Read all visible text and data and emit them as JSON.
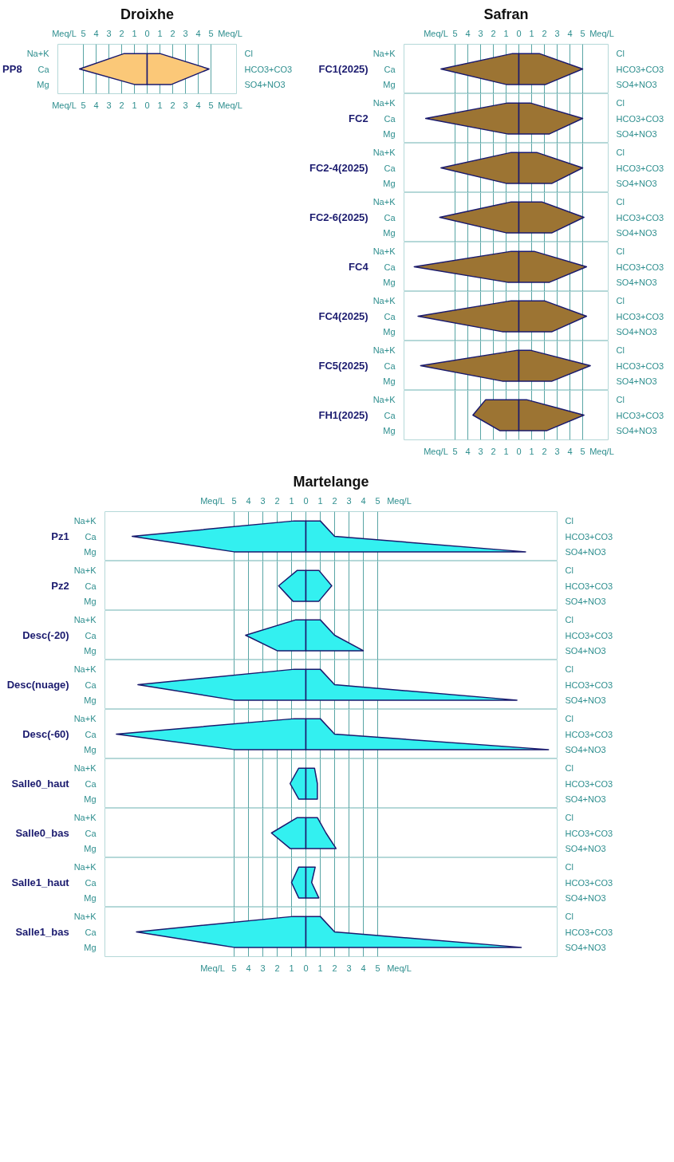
{
  "chart_data": [
    {
      "type": "area",
      "orientation": "horizontal",
      "title": "Droixhe",
      "ylabel": "PP8",
      "categories": [
        "Na+K",
        "Ca",
        "Mg"
      ],
      "annotations": [
        "Cl",
        "HCO3+CO3",
        "SO4+NO3"
      ],
      "series": [
        {
          "color": "#fbc878",
          "values": [
            -1.8,
            -5.3,
            -1.0
          ]
        },
        {
          "color": "#fbc878",
          "values": [
            1.0,
            4.85,
            1.9
          ]
        }
      ],
      "xlim": [
        -7,
        7
      ],
      "xticks": [
        {
          "value": -5,
          "label": "5"
        },
        {
          "value": -4,
          "label": "4"
        },
        {
          "value": -3,
          "label": "3"
        },
        {
          "value": -2,
          "label": "2"
        },
        {
          "value": -1,
          "label": "1"
        },
        0,
        1,
        2,
        3,
        4,
        5
      ],
      "xlabel": "Meq/L",
      "x2lim": [
        -7,
        7
      ],
      "x2ticks": [
        {
          "value": -5,
          "label": "5"
        },
        {
          "value": -4,
          "label": "4"
        },
        {
          "value": -3,
          "label": "3"
        },
        {
          "value": -2,
          "label": "2"
        },
        {
          "value": -1,
          "label": "1"
        },
        0,
        1,
        2,
        3,
        4,
        5
      ],
      "x2label": "Meq/L",
      "grid": "x"
    },
    {
      "type": "area",
      "orientation": "horizontal",
      "title": "Safran",
      "ylabel": "FC1(2025)",
      "categories": [
        "Na+K",
        "Ca",
        "Mg"
      ],
      "annotations": [
        "Cl",
        "HCO3+CO3",
        "SO4+NO3"
      ],
      "series": [
        {
          "color": "#9c7433",
          "values": [
            -0.5,
            -6.1,
            -1.0
          ]
        },
        {
          "color": "#9c7433",
          "values": [
            1.6,
            5.0,
            2.1
          ]
        }
      ],
      "xlim": [
        -9,
        7
      ],
      "xticks": [
        -5,
        -4,
        -3,
        -2,
        -1,
        0,
        1,
        2,
        3,
        4,
        5
      ],
      "x2lim": [
        -9,
        7
      ],
      "x2ticks": [
        {
          "value": -5,
          "label": "5"
        },
        {
          "value": -4,
          "label": "4"
        },
        {
          "value": -3,
          "label": "3"
        },
        {
          "value": -2,
          "label": "2"
        },
        {
          "value": -1,
          "label": "1"
        },
        0,
        1,
        2,
        3,
        4,
        5
      ],
      "x2label": "Meq/L",
      "grid": "x",
      "tick_labels": "y"
    },
    {
      "type": "area",
      "orientation": "horizontal",
      "ylabel": "FC2",
      "categories": [
        "Na+K",
        "Ca",
        "Mg"
      ],
      "annotations": [
        "Cl",
        "HCO3+CO3",
        "SO4+NO3"
      ],
      "series": [
        {
          "color": "#9c7433",
          "values": [
            -0.9,
            -7.3,
            -0.9
          ]
        },
        {
          "color": "#9c7433",
          "values": [
            0.9,
            5.0,
            2.4
          ]
        }
      ],
      "xlim": [
        -9,
        7
      ],
      "xticks": [
        -5,
        -4,
        -3,
        -2,
        -1,
        0,
        1,
        2,
        3,
        4,
        5
      ],
      "grid": "x",
      "tick_labels": "y"
    },
    {
      "type": "area",
      "orientation": "horizontal",
      "ylabel": "FC2-4(2025)",
      "categories": [
        "Na+K",
        "Ca",
        "Mg"
      ],
      "annotations": [
        "Cl",
        "HCO3+CO3",
        "SO4+NO3"
      ],
      "series": [
        {
          "color": "#9c7433",
          "values": [
            -0.6,
            -6.1,
            -1.0
          ]
        },
        {
          "color": "#9c7433",
          "values": [
            1.4,
            5.0,
            2.6
          ]
        }
      ],
      "xlim": [
        -9,
        7
      ],
      "xticks": [
        -5,
        -4,
        -3,
        -2,
        -1,
        0,
        1,
        2,
        3,
        4,
        5
      ],
      "grid": "x",
      "tick_labels": "y"
    },
    {
      "type": "area",
      "orientation": "horizontal",
      "ylabel": "FC2-6(2025)",
      "categories": [
        "Na+K",
        "Ca",
        "Mg"
      ],
      "annotations": [
        "Cl",
        "HCO3+CO3",
        "SO4+NO3"
      ],
      "series": [
        {
          "color": "#9c7433",
          "values": [
            -0.6,
            -6.2,
            -1.0
          ]
        },
        {
          "color": "#9c7433",
          "values": [
            1.8,
            5.1,
            2.6
          ]
        }
      ],
      "xlim": [
        -9,
        7
      ],
      "xticks": [
        -5,
        -4,
        -3,
        -2,
        -1,
        0,
        1,
        2,
        3,
        4,
        5
      ],
      "grid": "x",
      "tick_labels": "y"
    },
    {
      "type": "area",
      "orientation": "horizontal",
      "ylabel": "FC4",
      "categories": [
        "Na+K",
        "Ca",
        "Mg"
      ],
      "annotations": [
        "Cl",
        "HCO3+CO3",
        "SO4+NO3"
      ],
      "series": [
        {
          "color": "#9c7433",
          "values": [
            -0.6,
            -8.2,
            -0.9
          ]
        },
        {
          "color": "#9c7433",
          "values": [
            1.2,
            5.3,
            2.4
          ]
        }
      ],
      "xlim": [
        -9,
        7
      ],
      "xticks": [
        -5,
        -4,
        -3,
        -2,
        -1,
        0,
        1,
        2,
        3,
        4,
        5
      ],
      "grid": "x",
      "tick_labels": "y"
    },
    {
      "type": "area",
      "orientation": "horizontal",
      "ylabel": "FC4(2025)",
      "categories": [
        "Na+K",
        "Ca",
        "Mg"
      ],
      "annotations": [
        "Cl",
        "HCO3+CO3",
        "SO4+NO3"
      ],
      "series": [
        {
          "color": "#9c7433",
          "values": [
            -0.6,
            -7.9,
            -1.3
          ]
        },
        {
          "color": "#9c7433",
          "values": [
            2.0,
            5.3,
            2.6
          ]
        }
      ],
      "xlim": [
        -9,
        7
      ],
      "xticks": [
        -5,
        -4,
        -3,
        -2,
        -1,
        0,
        1,
        2,
        3,
        4,
        5
      ],
      "grid": "x",
      "tick_labels": "y"
    },
    {
      "type": "area",
      "orientation": "horizontal",
      "ylabel": "FC5(2025)",
      "categories": [
        "Na+K",
        "Ca",
        "Mg"
      ],
      "annotations": [
        "Cl",
        "HCO3+CO3",
        "SO4+NO3"
      ],
      "series": [
        {
          "color": "#9c7433",
          "values": [
            -0.1,
            -7.7,
            -1.3
          ]
        },
        {
          "color": "#9c7433",
          "values": [
            0.9,
            5.6,
            2.6
          ]
        }
      ],
      "xlim": [
        -9,
        7
      ],
      "xticks": [
        -5,
        -4,
        -3,
        -2,
        -1,
        0,
        1,
        2,
        3,
        4,
        5
      ],
      "grid": "x",
      "tick_labels": "y"
    },
    {
      "type": "area",
      "orientation": "horizontal",
      "ylabel": "FH1(2025)",
      "categories": [
        "Na+K",
        "Ca",
        "Mg"
      ],
      "annotations": [
        "Cl",
        "HCO3+CO3",
        "SO4+NO3"
      ],
      "series": [
        {
          "color": "#9c7433",
          "values": [
            -2.6,
            -3.6,
            -1.5
          ]
        },
        {
          "color": "#9c7433",
          "values": [
            0.6,
            5.1,
            2.2
          ]
        }
      ],
      "xlim": [
        -9,
        7
      ],
      "xticks": [
        {
          "value": -5,
          "label": "5"
        },
        {
          "value": -4,
          "label": "4"
        },
        {
          "value": -3,
          "label": "3"
        },
        {
          "value": -2,
          "label": "2"
        },
        {
          "value": -1,
          "label": "1"
        },
        0,
        1,
        2,
        3,
        4,
        5
      ],
      "xlabel": "Meq/L",
      "grid": "x"
    },
    {
      "type": "area",
      "orientation": "horizontal",
      "title": "Martelange",
      "ylabel": "Pz1",
      "categories": [
        "Na+K",
        "Ca",
        "Mg"
      ],
      "annotations": [
        "Cl",
        "HCO3+CO3",
        "SO4+NO3"
      ],
      "series": [
        {
          "color": "#33f0f0",
          "values": [
            -0.8,
            -12.1,
            -5.0
          ]
        },
        {
          "color": "#33f0f0",
          "values": [
            1.0,
            2.0,
            15.3
          ]
        }
      ],
      "xlim": [
        -14,
        17.5
      ],
      "xticks": [
        -5,
        -4,
        -3,
        -2,
        -1,
        0,
        1,
        2,
        3,
        4,
        5
      ],
      "x2lim": [
        -14,
        17.5
      ],
      "x2ticks": [
        {
          "value": -5,
          "label": "5"
        },
        {
          "value": -4,
          "label": "4"
        },
        {
          "value": -3,
          "label": "3"
        },
        {
          "value": -2,
          "label": "2"
        },
        {
          "value": -1,
          "label": "1"
        },
        0,
        1,
        2,
        3,
        4,
        5
      ],
      "x2label": "Meq/L",
      "grid": "x",
      "tick_labels": "y"
    },
    {
      "type": "area",
      "orientation": "horizontal",
      "ylabel": "Pz2",
      "categories": [
        "Na+K",
        "Ca",
        "Mg"
      ],
      "annotations": [
        "Cl",
        "HCO3+CO3",
        "SO4+NO3"
      ],
      "series": [
        {
          "color": "#33f0f0",
          "values": [
            -0.6,
            -1.9,
            -0.9
          ]
        },
        {
          "color": "#33f0f0",
          "values": [
            0.9,
            1.8,
            0.9
          ]
        }
      ],
      "xlim": [
        -14,
        17.5
      ],
      "xticks": [
        -5,
        -4,
        -3,
        -2,
        -1,
        0,
        1,
        2,
        3,
        4,
        5
      ],
      "grid": "x",
      "tick_labels": "y"
    },
    {
      "type": "area",
      "orientation": "horizontal",
      "ylabel": "Desc(-20)",
      "categories": [
        "Na+K",
        "Ca",
        "Mg"
      ],
      "annotations": [
        "Cl",
        "HCO3+CO3",
        "SO4+NO3"
      ],
      "series": [
        {
          "color": "#33f0f0",
          "values": [
            -0.7,
            -4.2,
            -2.0
          ]
        },
        {
          "color": "#33f0f0",
          "values": [
            1.0,
            2.0,
            4.0
          ]
        }
      ],
      "xlim": [
        -14,
        17.5
      ],
      "xticks": [
        -5,
        -4,
        -3,
        -2,
        -1,
        0,
        1,
        2,
        3,
        4,
        5
      ],
      "grid": "x",
      "tick_labels": "y"
    },
    {
      "type": "area",
      "orientation": "horizontal",
      "ylabel": "Desc(nuage)",
      "categories": [
        "Na+K",
        "Ca",
        "Mg"
      ],
      "annotations": [
        "Cl",
        "HCO3+CO3",
        "SO4+NO3"
      ],
      "series": [
        {
          "color": "#33f0f0",
          "values": [
            -0.8,
            -11.7,
            -5.0
          ]
        },
        {
          "color": "#33f0f0",
          "values": [
            1.0,
            2.0,
            14.7
          ]
        }
      ],
      "xlim": [
        -14,
        17.5
      ],
      "xticks": [
        -5,
        -4,
        -3,
        -2,
        -1,
        0,
        1,
        2,
        3,
        4,
        5
      ],
      "grid": "x",
      "tick_labels": "y"
    },
    {
      "type": "area",
      "orientation": "horizontal",
      "ylabel": "Desc(-60)",
      "categories": [
        "Na+K",
        "Ca",
        "Mg"
      ],
      "annotations": [
        "Cl",
        "HCO3+CO3",
        "SO4+NO3"
      ],
      "series": [
        {
          "color": "#33f0f0",
          "values": [
            -0.8,
            -13.2,
            -5.0
          ]
        },
        {
          "color": "#33f0f0",
          "values": [
            1.0,
            2.0,
            16.9
          ]
        }
      ],
      "xlim": [
        -14,
        17.5
      ],
      "xticks": [
        -5,
        -4,
        -3,
        -2,
        -1,
        0,
        1,
        2,
        3,
        4,
        5
      ],
      "grid": "x",
      "tick_labels": "y"
    },
    {
      "type": "area",
      "orientation": "horizontal",
      "ylabel": "Salle0_haut",
      "categories": [
        "Na+K",
        "Ca",
        "Mg"
      ],
      "annotations": [
        "Cl",
        "HCO3+CO3",
        "SO4+NO3"
      ],
      "series": [
        {
          "color": "#33f0f0",
          "values": [
            -0.5,
            -1.1,
            -0.5
          ]
        },
        {
          "color": "#33f0f0",
          "values": [
            0.6,
            0.8,
            0.8
          ]
        }
      ],
      "xlim": [
        -14,
        17.5
      ],
      "xticks": [
        -5,
        -4,
        -3,
        -2,
        -1,
        0,
        1,
        2,
        3,
        4,
        5
      ],
      "grid": "x",
      "tick_labels": "y"
    },
    {
      "type": "area",
      "orientation": "horizontal",
      "ylabel": "Salle0_bas",
      "categories": [
        "Na+K",
        "Ca",
        "Mg"
      ],
      "annotations": [
        "Cl",
        "HCO3+CO3",
        "SO4+NO3"
      ],
      "series": [
        {
          "color": "#33f0f0",
          "values": [
            -0.6,
            -2.4,
            -1.1
          ]
        },
        {
          "color": "#33f0f0",
          "values": [
            0.8,
            1.4,
            2.1
          ]
        }
      ],
      "xlim": [
        -14,
        17.5
      ],
      "xticks": [
        -5,
        -4,
        -3,
        -2,
        -1,
        0,
        1,
        2,
        3,
        4,
        5
      ],
      "grid": "x",
      "tick_labels": "y"
    },
    {
      "type": "area",
      "orientation": "horizontal",
      "ylabel": "Salle1_haut",
      "categories": [
        "Na+K",
        "Ca",
        "Mg"
      ],
      "annotations": [
        "Cl",
        "HCO3+CO3",
        "SO4+NO3"
      ],
      "series": [
        {
          "color": "#33f0f0",
          "values": [
            -0.5,
            -1.0,
            -0.5
          ]
        },
        {
          "color": "#33f0f0",
          "values": [
            0.65,
            0.4,
            0.9
          ]
        }
      ],
      "xlim": [
        -14,
        17.5
      ],
      "xticks": [
        -5,
        -4,
        -3,
        -2,
        -1,
        0,
        1,
        2,
        3,
        4,
        5
      ],
      "grid": "x",
      "tick_labels": "y"
    },
    {
      "type": "area",
      "orientation": "horizontal",
      "ylabel": "Salle1_bas",
      "categories": [
        "Na+K",
        "Ca",
        "Mg"
      ],
      "annotations": [
        "Cl",
        "HCO3+CO3",
        "SO4+NO3"
      ],
      "series": [
        {
          "color": "#33f0f0",
          "values": [
            -0.9,
            -11.8,
            -5.0
          ]
        },
        {
          "color": "#33f0f0",
          "values": [
            1.0,
            2.0,
            15.0
          ]
        }
      ],
      "xlim": [
        -14,
        17.5
      ],
      "xticks": [
        {
          "value": -5,
          "label": "5"
        },
        {
          "value": -4,
          "label": "4"
        },
        {
          "value": -3,
          "label": "3"
        },
        {
          "value": -2,
          "label": "2"
        },
        {
          "value": -1,
          "label": "1"
        },
        0,
        1,
        2,
        3,
        4,
        5
      ],
      "xlabel": "Meq/L",
      "grid": "x"
    }
  ]
}
